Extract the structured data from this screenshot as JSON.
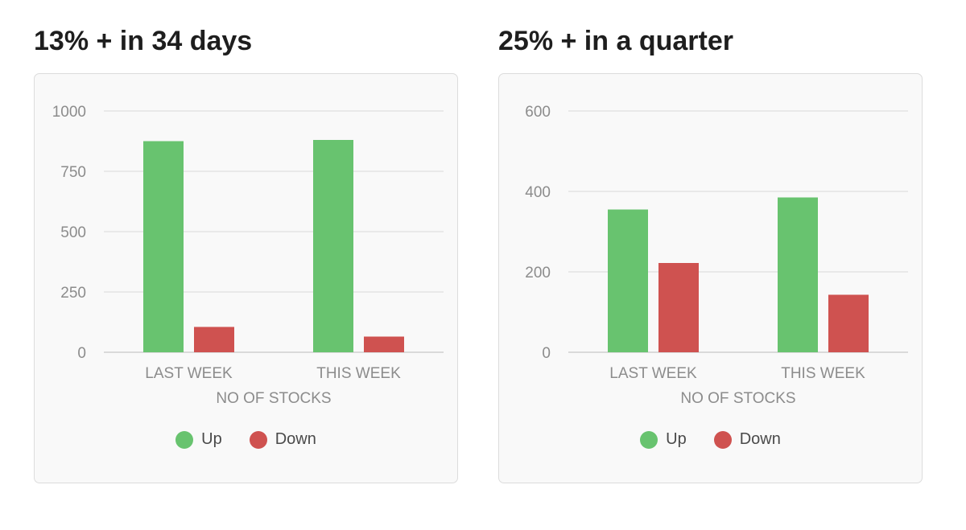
{
  "chart_data": [
    {
      "type": "bar",
      "title": "13% + in 34 days",
      "xlabel": "NO OF STOCKS",
      "ylabel": "",
      "categories": [
        "LAST WEEK",
        "THIS WEEK"
      ],
      "yticks": [
        "0",
        "250",
        "500",
        "750",
        "1000"
      ],
      "ylim": [
        0,
        1000
      ],
      "grid": true,
      "legend_position": "bottom-center",
      "series": [
        {
          "name": "Up",
          "color": "#68c36f",
          "values": [
            875,
            880
          ]
        },
        {
          "name": "Down",
          "color": "#cf5250",
          "values": [
            105,
            65
          ]
        }
      ]
    },
    {
      "type": "bar",
      "title": "25% + in a quarter",
      "xlabel": "NO OF STOCKS",
      "ylabel": "",
      "categories": [
        "LAST WEEK",
        "THIS WEEK"
      ],
      "yticks": [
        "0",
        "200",
        "400",
        "600"
      ],
      "ylim": [
        0,
        600
      ],
      "grid": true,
      "legend_position": "bottom-center",
      "series": [
        {
          "name": "Up",
          "color": "#68c36f",
          "values": [
            355,
            385
          ]
        },
        {
          "name": "Down",
          "color": "#cf5250",
          "values": [
            222,
            143
          ]
        }
      ]
    }
  ]
}
